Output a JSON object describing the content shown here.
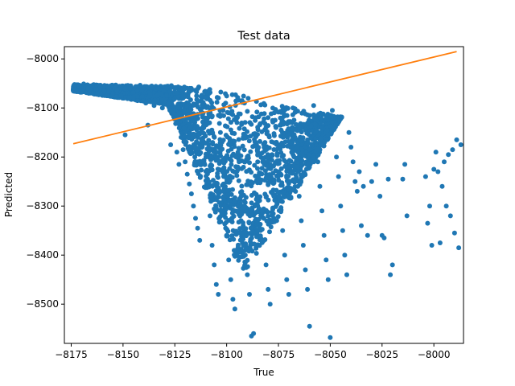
{
  "chart_data": {
    "type": "scatter",
    "title": "Test data",
    "xlabel": "True",
    "ylabel": "Predicted",
    "xlim": [
      -8178.3,
      -7985.7
    ],
    "ylim": [
      -8580,
      -7975
    ],
    "xticks": [
      -8175,
      -8150,
      -8125,
      -8100,
      -8075,
      -8050,
      -8025,
      -8000
    ],
    "yticks": [
      -8500,
      -8400,
      -8300,
      -8200,
      -8100,
      -8000
    ],
    "xtick_labels": [
      "−8175",
      "−8150",
      "−8125",
      "−8100",
      "−8075",
      "−8050",
      "−8025",
      "−8000"
    ],
    "ytick_labels": [
      "−8500",
      "−8400",
      "−8300",
      "−8200",
      "−8100",
      "−8000"
    ],
    "grid": false,
    "colors": {
      "points": "#1f77b4",
      "fit_line": "#ff7f0e"
    },
    "fit_line": {
      "x": [
        -8174,
        -7989
      ],
      "y": [
        -8173,
        -7985
      ]
    },
    "points": [
      [
        -8173,
        -8053
      ],
      [
        -8171,
        -8056
      ],
      [
        -8169,
        -8051
      ],
      [
        -8167,
        -8060
      ],
      [
        -8165,
        -8055
      ],
      [
        -8163,
        -8062
      ],
      [
        -8161,
        -8058
      ],
      [
        -8159,
        -8066
      ],
      [
        -8157,
        -8057
      ],
      [
        -8155,
        -8070
      ],
      [
        -8153,
        -8063
      ],
      [
        -8151,
        -8075
      ],
      [
        -8149,
        -8061
      ],
      [
        -8147,
        -8080
      ],
      [
        -8145,
        -8068
      ],
      [
        -8143,
        -8085
      ],
      [
        -8141,
        -8064
      ],
      [
        -8139,
        -8090
      ],
      [
        -8137,
        -8072
      ],
      [
        -8135,
        -8095
      ],
      [
        -8133,
        -8060
      ],
      [
        -8131,
        -8100
      ],
      [
        -8129,
        -8075
      ],
      [
        -8127,
        -8105
      ],
      [
        -8125,
        -8059
      ],
      [
        -8123,
        -8110
      ],
      [
        -8121,
        -8080
      ],
      [
        -8119,
        -8115
      ],
      [
        -8117,
        -8064
      ],
      [
        -8115,
        -8120
      ],
      [
        -8149,
        -8155
      ],
      [
        -8138,
        -8135
      ],
      [
        -8127,
        -8175
      ],
      [
        -8124,
        -8190
      ],
      [
        -8123,
        -8215
      ],
      [
        -8122,
        -8160
      ],
      [
        -8121,
        -8185
      ],
      [
        -8120,
        -8210
      ],
      [
        -8119,
        -8235
      ],
      [
        -8118,
        -8255
      ],
      [
        -8117,
        -8275
      ],
      [
        -8116,
        -8300
      ],
      [
        -8115,
        -8325
      ],
      [
        -8114,
        -8345
      ],
      [
        -8113,
        -8370
      ],
      [
        -8111,
        -8140
      ],
      [
        -8110,
        -8200
      ],
      [
        -8109,
        -8260
      ],
      [
        -8108,
        -8320
      ],
      [
        -8107,
        -8380
      ],
      [
        -8106,
        -8420
      ],
      [
        -8105,
        -8460
      ],
      [
        -8104,
        -8480
      ],
      [
        -8103,
        -8150
      ],
      [
        -8102,
        -8230
      ],
      [
        -8101,
        -8300
      ],
      [
        -8100,
        -8360
      ],
      [
        -8099,
        -8410
      ],
      [
        -8098,
        -8450
      ],
      [
        -8097,
        -8490
      ],
      [
        -8096,
        -8510
      ],
      [
        -8095,
        -8130
      ],
      [
        -8094,
        -8210
      ],
      [
        -8093,
        -8280
      ],
      [
        -8092,
        -8340
      ],
      [
        -8091,
        -8400
      ],
      [
        -8090,
        -8440
      ],
      [
        -8089,
        -8480
      ],
      [
        -8088,
        -8565
      ],
      [
        -8087,
        -8560
      ],
      [
        -8086,
        -8120
      ],
      [
        -8085,
        -8190
      ],
      [
        -8084,
        -8250
      ],
      [
        -8083,
        -8310
      ],
      [
        -8082,
        -8370
      ],
      [
        -8081,
        -8420
      ],
      [
        -8080,
        -8470
      ],
      [
        -8079,
        -8500
      ],
      [
        -8077,
        -8110
      ],
      [
        -8076,
        -8170
      ],
      [
        -8075,
        -8230
      ],
      [
        -8074,
        -8290
      ],
      [
        -8073,
        -8350
      ],
      [
        -8072,
        -8400
      ],
      [
        -8071,
        -8450
      ],
      [
        -8070,
        -8480
      ],
      [
        -8068,
        -8100
      ],
      [
        -8067,
        -8160
      ],
      [
        -8066,
        -8220
      ],
      [
        -8065,
        -8280
      ],
      [
        -8064,
        -8330
      ],
      [
        -8063,
        -8380
      ],
      [
        -8062,
        -8430
      ],
      [
        -8061,
        -8470
      ],
      [
        -8060,
        -8545
      ],
      [
        -8058,
        -8095
      ],
      [
        -8057,
        -8150
      ],
      [
        -8056,
        -8210
      ],
      [
        -8055,
        -8260
      ],
      [
        -8054,
        -8310
      ],
      [
        -8053,
        -8360
      ],
      [
        -8052,
        -8410
      ],
      [
        -8051,
        -8450
      ],
      [
        -8050,
        -8568
      ],
      [
        -8049,
        -8105
      ],
      [
        -8048,
        -8140
      ],
      [
        -8047,
        -8200
      ],
      [
        -8046,
        -8240
      ],
      [
        -8045,
        -8300
      ],
      [
        -8044,
        -8350
      ],
      [
        -8043,
        -8400
      ],
      [
        -8042,
        -8440
      ],
      [
        -8041,
        -8150
      ],
      [
        -8040,
        -8180
      ],
      [
        -8039,
        -8210
      ],
      [
        -8038,
        -8250
      ],
      [
        -8037,
        -8270
      ],
      [
        -8036,
        -8230
      ],
      [
        -8035,
        -8340
      ],
      [
        -8034,
        -8260
      ],
      [
        -8032,
        -8360
      ],
      [
        -8030,
        -8250
      ],
      [
        -8028,
        -8215
      ],
      [
        -8026,
        -8280
      ],
      [
        -8025,
        -8360
      ],
      [
        -8024,
        -8365
      ],
      [
        -8022,
        -8245
      ],
      [
        -8021,
        -8440
      ],
      [
        -8020,
        -8420
      ],
      [
        -8015,
        -8245
      ],
      [
        -8014,
        -8215
      ],
      [
        -8013,
        -8320
      ],
      [
        -8004,
        -8240
      ],
      [
        -8003,
        -8335
      ],
      [
        -8002,
        -8300
      ],
      [
        -8001,
        -8380
      ],
      [
        -8000,
        -8225
      ],
      [
        -7999,
        -8190
      ],
      [
        -7998,
        -8230
      ],
      [
        -7997,
        -8375
      ],
      [
        -7996,
        -8260
      ],
      [
        -7995,
        -8210
      ],
      [
        -7994,
        -8300
      ],
      [
        -7993,
        -8195
      ],
      [
        -7992,
        -8320
      ],
      [
        -7991,
        -8185
      ],
      [
        -7990,
        -8355
      ],
      [
        -7989,
        -8165
      ],
      [
        -7988,
        -8385
      ],
      [
        -7987,
        -8175
      ]
    ]
  }
}
